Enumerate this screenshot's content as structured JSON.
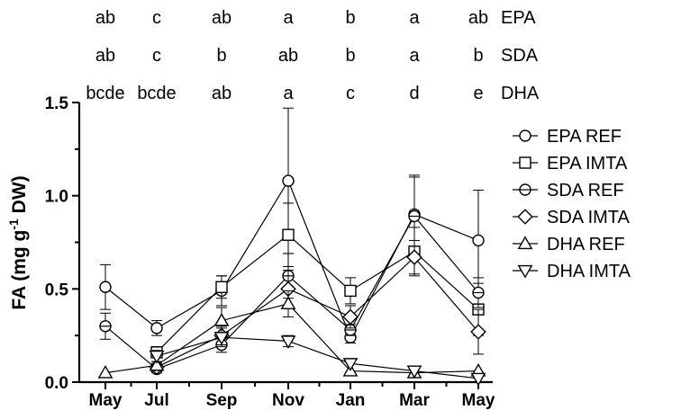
{
  "chart_data": {
    "type": "line",
    "ylabel_parts": {
      "main": "FA (mg g",
      "sup": "-1",
      "tail": " DW)"
    },
    "categories": [
      "May",
      "Jul",
      "Sep",
      "Nov",
      "Jan",
      "Mar",
      "May"
    ],
    "y_ticks": [
      "0.0",
      "0.5",
      "1.0",
      "1.5"
    ],
    "ylim": [
      0,
      1.5
    ],
    "letter_rows": [
      {
        "label": "EPA",
        "letters": [
          "ab",
          "c",
          "ab",
          "a",
          "b",
          "a",
          "ab"
        ]
      },
      {
        "label": "SDA",
        "letters": [
          "ab",
          "c",
          "b",
          "ab",
          "b",
          "a",
          "b"
        ]
      },
      {
        "label": "DHA",
        "letters": [
          "bcde",
          "bcde",
          "ab",
          "a",
          "c",
          "d",
          "e"
        ]
      }
    ],
    "legend_position": "right",
    "series": [
      {
        "name": "EPA REF",
        "marker": "circle",
        "values": [
          0.51,
          0.29,
          0.49,
          1.08,
          0.24,
          0.9,
          0.76
        ],
        "err": [
          0.12,
          0.04,
          0.08,
          0.39,
          0.03,
          0.21,
          0.27
        ]
      },
      {
        "name": "EPA IMTA",
        "marker": "square",
        "values": [
          null,
          0.16,
          0.51,
          0.79,
          0.49,
          0.7,
          0.39
        ],
        "err": [
          null,
          0.03,
          0.06,
          0.17,
          0.07,
          0.13,
          0.14
        ]
      },
      {
        "name": "SDA REF",
        "marker": "circle-line",
        "values": [
          0.3,
          0.07,
          0.2,
          0.57,
          0.28,
          0.89,
          0.48
        ],
        "err": [
          0.07,
          0.02,
          0.04,
          0.12,
          0.03,
          0.21,
          0.08
        ]
      },
      {
        "name": "SDA IMTA",
        "marker": "diamond",
        "values": [
          null,
          0.08,
          0.25,
          0.5,
          0.35,
          0.67,
          0.27
        ],
        "err": [
          null,
          0.02,
          0.05,
          0.1,
          0.06,
          0.09,
          0.12
        ]
      },
      {
        "name": "DHA REF",
        "marker": "triangle-up",
        "values": [
          0.05,
          0.09,
          0.33,
          0.42,
          0.06,
          0.05,
          0.06
        ],
        "err": [
          null,
          0.02,
          0.07,
          0.07,
          null,
          null,
          null
        ]
      },
      {
        "name": "DHA IMTA",
        "marker": "triangle-down",
        "values": [
          null,
          0.14,
          0.24,
          0.22,
          0.1,
          0.06,
          0.02
        ],
        "err": [
          null,
          0.03,
          0.05,
          0.03,
          null,
          null,
          null
        ]
      }
    ]
  }
}
